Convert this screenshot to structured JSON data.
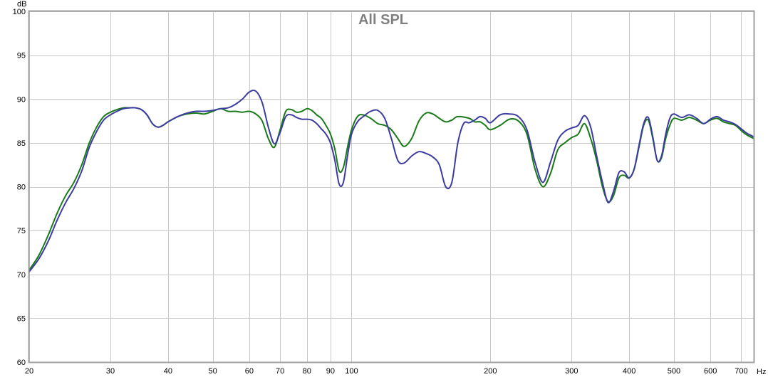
{
  "chart_data": {
    "type": "line",
    "title": "All SPL",
    "ylabel": "dB",
    "xunit": "Hz",
    "xscale": "log",
    "xlim": [
      20,
      745
    ],
    "ylim": [
      60,
      100
    ],
    "grid": true,
    "xticks": [
      20,
      30,
      40,
      50,
      60,
      70,
      80,
      90,
      100,
      200,
      300,
      400,
      500,
      600,
      700
    ],
    "xtick_labels": [
      "20",
      "30",
      "40",
      "50",
      "60",
      "70",
      "80",
      "90",
      "100",
      "200",
      "300",
      "400",
      "500",
      "600",
      "700"
    ],
    "yticks": [
      60,
      65,
      70,
      75,
      80,
      85,
      90,
      95,
      100
    ],
    "ytick_labels": [
      "60",
      "65",
      "70",
      "75",
      "80",
      "85",
      "90",
      "95",
      "100"
    ],
    "series": [
      {
        "color": "#1a7a1a",
        "points": [
          [
            20,
            70.5
          ],
          [
            21,
            72.2
          ],
          [
            22,
            74.5
          ],
          [
            23,
            77.0
          ],
          [
            24,
            79.0
          ],
          [
            25,
            80.5
          ],
          [
            26,
            82.5
          ],
          [
            27,
            85.0
          ],
          [
            28,
            86.8
          ],
          [
            29,
            88.0
          ],
          [
            30,
            88.5
          ],
          [
            31,
            88.8
          ],
          [
            32,
            89.0
          ],
          [
            33,
            89.0
          ],
          [
            34,
            89.0
          ],
          [
            35,
            88.8
          ],
          [
            36,
            88.2
          ],
          [
            37,
            87.2
          ],
          [
            38,
            86.8
          ],
          [
            39,
            87.0
          ],
          [
            40,
            87.4
          ],
          [
            42,
            88.0
          ],
          [
            44,
            88.3
          ],
          [
            46,
            88.4
          ],
          [
            48,
            88.3
          ],
          [
            50,
            88.6
          ],
          [
            52,
            88.9
          ],
          [
            54,
            88.6
          ],
          [
            56,
            88.6
          ],
          [
            58,
            88.5
          ],
          [
            60,
            88.6
          ],
          [
            62,
            88.3
          ],
          [
            64,
            87.5
          ],
          [
            66,
            85.5
          ],
          [
            68,
            84.5
          ],
          [
            70,
            86.5
          ],
          [
            72,
            88.6
          ],
          [
            74,
            88.8
          ],
          [
            76,
            88.5
          ],
          [
            78,
            88.6
          ],
          [
            80,
            88.9
          ],
          [
            82,
            88.7
          ],
          [
            84,
            88.2
          ],
          [
            86,
            87.8
          ],
          [
            88,
            87.0
          ],
          [
            90,
            86.0
          ],
          [
            92,
            84.3
          ],
          [
            94,
            81.8
          ],
          [
            96,
            82.2
          ],
          [
            98,
            84.5
          ],
          [
            100,
            86.5
          ],
          [
            103,
            88.0
          ],
          [
            106,
            88.2
          ],
          [
            110,
            87.8
          ],
          [
            114,
            87.2
          ],
          [
            118,
            87.0
          ],
          [
            122,
            86.5
          ],
          [
            126,
            85.5
          ],
          [
            130,
            84.6
          ],
          [
            135,
            85.5
          ],
          [
            140,
            87.5
          ],
          [
            145,
            88.4
          ],
          [
            150,
            88.3
          ],
          [
            155,
            87.8
          ],
          [
            160,
            87.4
          ],
          [
            165,
            87.6
          ],
          [
            170,
            88.0
          ],
          [
            180,
            87.8
          ],
          [
            185,
            87.4
          ],
          [
            190,
            87.4
          ],
          [
            195,
            87.0
          ],
          [
            200,
            86.5
          ],
          [
            210,
            87.0
          ],
          [
            220,
            87.7
          ],
          [
            230,
            87.5
          ],
          [
            240,
            86.0
          ],
          [
            250,
            82.0
          ],
          [
            260,
            80.0
          ],
          [
            270,
            81.5
          ],
          [
            280,
            84.2
          ],
          [
            290,
            85.0
          ],
          [
            300,
            85.6
          ],
          [
            310,
            86.0
          ],
          [
            320,
            87.2
          ],
          [
            330,
            85.5
          ],
          [
            340,
            83.0
          ],
          [
            350,
            80.0
          ],
          [
            360,
            78.3
          ],
          [
            370,
            79.0
          ],
          [
            380,
            81.0
          ],
          [
            390,
            81.3
          ],
          [
            400,
            81.0
          ],
          [
            410,
            82.0
          ],
          [
            420,
            84.5
          ],
          [
            430,
            87.0
          ],
          [
            440,
            87.6
          ],
          [
            450,
            85.5
          ],
          [
            460,
            83.0
          ],
          [
            470,
            83.3
          ],
          [
            480,
            85.5
          ],
          [
            490,
            87.0
          ],
          [
            500,
            87.8
          ],
          [
            520,
            87.6
          ],
          [
            540,
            87.9
          ],
          [
            560,
            87.6
          ],
          [
            580,
            87.2
          ],
          [
            600,
            87.6
          ],
          [
            620,
            87.8
          ],
          [
            640,
            87.4
          ],
          [
            660,
            87.2
          ],
          [
            680,
            87.0
          ],
          [
            700,
            86.4
          ],
          [
            720,
            85.9
          ],
          [
            745,
            85.5
          ]
        ]
      },
      {
        "color": "#3c3ca0",
        "points": [
          [
            20,
            70.3
          ],
          [
            21,
            71.8
          ],
          [
            22,
            73.8
          ],
          [
            23,
            76.2
          ],
          [
            24,
            78.2
          ],
          [
            25,
            79.8
          ],
          [
            26,
            81.8
          ],
          [
            27,
            84.5
          ],
          [
            28,
            86.3
          ],
          [
            29,
            87.6
          ],
          [
            30,
            88.2
          ],
          [
            31,
            88.6
          ],
          [
            32,
            88.9
          ],
          [
            33,
            89.0
          ],
          [
            34,
            89.0
          ],
          [
            35,
            88.8
          ],
          [
            36,
            88.2
          ],
          [
            37,
            87.2
          ],
          [
            38,
            86.8
          ],
          [
            39,
            87.0
          ],
          [
            40,
            87.4
          ],
          [
            42,
            88.0
          ],
          [
            44,
            88.4
          ],
          [
            46,
            88.6
          ],
          [
            48,
            88.6
          ],
          [
            50,
            88.7
          ],
          [
            52,
            88.9
          ],
          [
            54,
            89.0
          ],
          [
            56,
            89.4
          ],
          [
            58,
            90.0
          ],
          [
            60,
            90.8
          ],
          [
            62,
            90.9
          ],
          [
            64,
            89.6
          ],
          [
            66,
            86.8
          ],
          [
            68,
            84.9
          ],
          [
            70,
            86.2
          ],
          [
            72,
            88.0
          ],
          [
            74,
            88.2
          ],
          [
            76,
            87.9
          ],
          [
            78,
            87.7
          ],
          [
            80,
            87.7
          ],
          [
            82,
            87.6
          ],
          [
            84,
            87.2
          ],
          [
            86,
            86.6
          ],
          [
            88,
            86.0
          ],
          [
            90,
            85.0
          ],
          [
            92,
            83.0
          ],
          [
            94,
            80.3
          ],
          [
            96,
            80.5
          ],
          [
            98,
            83.5
          ],
          [
            100,
            86.0
          ],
          [
            103,
            87.4
          ],
          [
            106,
            88.0
          ],
          [
            110,
            88.6
          ],
          [
            114,
            88.7
          ],
          [
            118,
            87.8
          ],
          [
            122,
            85.5
          ],
          [
            126,
            83.0
          ],
          [
            130,
            82.7
          ],
          [
            135,
            83.5
          ],
          [
            140,
            84.0
          ],
          [
            145,
            83.8
          ],
          [
            150,
            83.4
          ],
          [
            155,
            82.5
          ],
          [
            160,
            80.0
          ],
          [
            165,
            80.5
          ],
          [
            170,
            85.0
          ],
          [
            175,
            87.2
          ],
          [
            180,
            87.3
          ],
          [
            185,
            87.6
          ],
          [
            190,
            88.0
          ],
          [
            195,
            87.8
          ],
          [
            200,
            87.3
          ],
          [
            210,
            88.2
          ],
          [
            220,
            88.3
          ],
          [
            230,
            88.0
          ],
          [
            240,
            86.5
          ],
          [
            250,
            82.8
          ],
          [
            260,
            80.5
          ],
          [
            270,
            82.8
          ],
          [
            280,
            85.3
          ],
          [
            290,
            86.3
          ],
          [
            300,
            86.7
          ],
          [
            310,
            87.0
          ],
          [
            320,
            88.1
          ],
          [
            330,
            86.8
          ],
          [
            340,
            83.5
          ],
          [
            350,
            80.5
          ],
          [
            360,
            78.2
          ],
          [
            370,
            79.5
          ],
          [
            380,
            81.6
          ],
          [
            390,
            81.7
          ],
          [
            400,
            81.0
          ],
          [
            410,
            82.0
          ],
          [
            420,
            84.7
          ],
          [
            430,
            87.2
          ],
          [
            440,
            87.9
          ],
          [
            450,
            85.7
          ],
          [
            460,
            83.0
          ],
          [
            470,
            83.5
          ],
          [
            480,
            86.0
          ],
          [
            490,
            87.8
          ],
          [
            500,
            88.3
          ],
          [
            520,
            87.9
          ],
          [
            540,
            88.2
          ],
          [
            560,
            87.8
          ],
          [
            580,
            87.2
          ],
          [
            600,
            87.7
          ],
          [
            620,
            88.0
          ],
          [
            640,
            87.6
          ],
          [
            660,
            87.4
          ],
          [
            680,
            87.1
          ],
          [
            700,
            86.6
          ],
          [
            720,
            86.1
          ],
          [
            745,
            85.7
          ]
        ]
      }
    ]
  }
}
